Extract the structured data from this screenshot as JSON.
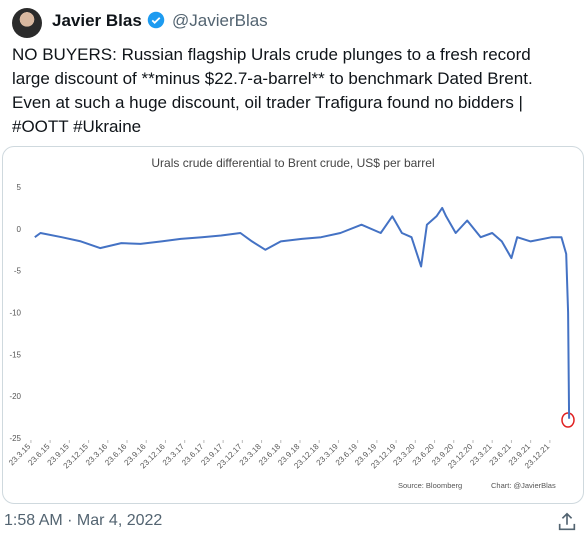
{
  "author": {
    "name": "Javier Blas",
    "handle": "@JavierBlas"
  },
  "tweet_text": "NO BUYERS: Russian flagship Urals crude plunges to a fresh record large discount of **minus $22.7-a-barrel** to benchmark Dated Brent. Even at such a huge discount, oil trader Trafigura found no bidders | #OOTT #Ukraine",
  "timestamp": "1:58 AM · Mar 4, 2022",
  "chart_data": {
    "type": "line",
    "title": "Urals crude differential to Brent crude, US$ per barrel",
    "source": "Source: Bloomberg",
    "credit": "Chart: @JavierBlas",
    "color": "#4472c4",
    "x": [
      0.2,
      0.5,
      1.6,
      2.6,
      3.6,
      4.7,
      5.7,
      6.8,
      7.8,
      8.9,
      9.9,
      10.9,
      11.5,
      12.2,
      13.0,
      14.1,
      15.1,
      16.1,
      17.2,
      18.2,
      18.8,
      19.3,
      19.8,
      20.3,
      20.6,
      21.1,
      21.4,
      21.6,
      22.1,
      22.7,
      23.4,
      24.0,
      24.5,
      25.0,
      25.3,
      26.0,
      27.1,
      27.6,
      27.85,
      27.95,
      28.0
    ],
    "values": [
      -1,
      -0.5,
      -1,
      -1.5,
      -2.3,
      -1.7,
      -1.8,
      -1.5,
      -1.2,
      -1,
      -0.8,
      -0.5,
      -1.5,
      -2.5,
      -1.5,
      -1.2,
      -1,
      -0.5,
      0.5,
      -0.5,
      1.5,
      -0.5,
      -1,
      -4.5,
      0.5,
      1.5,
      2.5,
      1.5,
      -0.5,
      1,
      -1,
      -0.5,
      -1.5,
      -3.5,
      -1,
      -1.5,
      -1,
      -1,
      -3,
      -10,
      -22.7
    ],
    "xlim": [
      -0.1,
      28.1
    ],
    "xticks": [
      {
        "value": 0,
        "label": "23.3.15"
      },
      {
        "value": 1,
        "label": "23.6.15"
      },
      {
        "value": 2,
        "label": "23.9.15"
      },
      {
        "value": 3,
        "label": "23.12.15"
      },
      {
        "value": 4,
        "label": "23.3.16"
      },
      {
        "value": 5,
        "label": "23.6.16"
      },
      {
        "value": 6,
        "label": "23.9.16"
      },
      {
        "value": 7,
        "label": "23.12.16"
      },
      {
        "value": 8,
        "label": "23.3.17"
      },
      {
        "value": 9,
        "label": "23.6.17"
      },
      {
        "value": 10,
        "label": "23.9.17"
      },
      {
        "value": 11,
        "label": "23.12.17"
      },
      {
        "value": 12,
        "label": "23.3.18"
      },
      {
        "value": 13,
        "label": "23.6.18"
      },
      {
        "value": 14,
        "label": "23.9.18"
      },
      {
        "value": 15,
        "label": "23.12.18"
      },
      {
        "value": 16,
        "label": "23.3.19"
      },
      {
        "value": 17,
        "label": "23.6.19"
      },
      {
        "value": 18,
        "label": "23.9.19"
      },
      {
        "value": 19,
        "label": "23.12.19"
      },
      {
        "value": 20,
        "label": "23.3.20"
      },
      {
        "value": 21,
        "label": "23.6.20"
      },
      {
        "value": 22,
        "label": "23.9.20"
      },
      {
        "value": 23,
        "label": "23.12.20"
      },
      {
        "value": 24,
        "label": "23.3.21"
      },
      {
        "value": 25,
        "label": "23.6.21"
      },
      {
        "value": 26,
        "label": "23.9.21"
      },
      {
        "value": 27,
        "label": "23.12.21"
      }
    ],
    "ylim": [
      -25,
      5
    ],
    "yticks": [
      5,
      0,
      -5,
      -10,
      -15,
      -20,
      -25
    ]
  }
}
